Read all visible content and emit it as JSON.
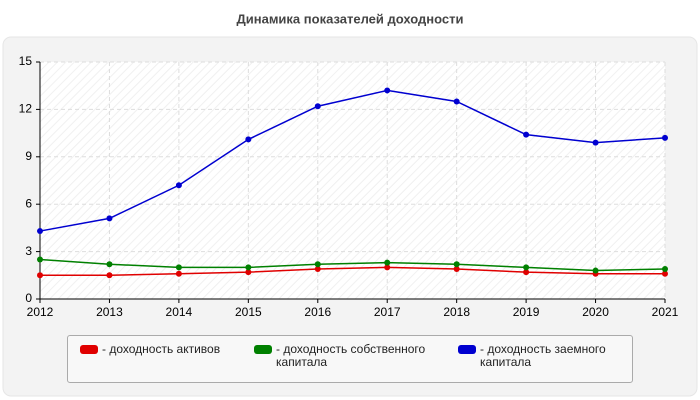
{
  "chart_data": {
    "type": "line",
    "title": "Динамика показателей доходности",
    "x": [
      2012,
      2013,
      2014,
      2015,
      2016,
      2017,
      2018,
      2019,
      2020,
      2021
    ],
    "xlim": [
      2012,
      2021
    ],
    "xticks": [
      2012,
      2013,
      2014,
      2015,
      2016,
      2017,
      2018,
      2019,
      2020,
      2021
    ],
    "ylim": [
      0,
      15
    ],
    "yticks": [
      0,
      3,
      6,
      9,
      12,
      15
    ],
    "grid": true,
    "series": [
      {
        "name": "- доходность активов",
        "color": "#e00000",
        "values": [
          1.5,
          1.5,
          1.6,
          1.7,
          1.9,
          2.0,
          1.9,
          1.7,
          1.6,
          1.6
        ]
      },
      {
        "name": "- доходность собственного капитала",
        "color": "#008000",
        "values": [
          2.5,
          2.2,
          2.0,
          2.0,
          2.2,
          2.3,
          2.2,
          2.0,
          1.8,
          1.9
        ]
      },
      {
        "name": "- доходность заемного капитала",
        "color": "#0000d0",
        "values": [
          4.3,
          5.1,
          7.2,
          10.1,
          12.2,
          13.2,
          12.5,
          10.4,
          9.9,
          10.2
        ]
      }
    ]
  }
}
